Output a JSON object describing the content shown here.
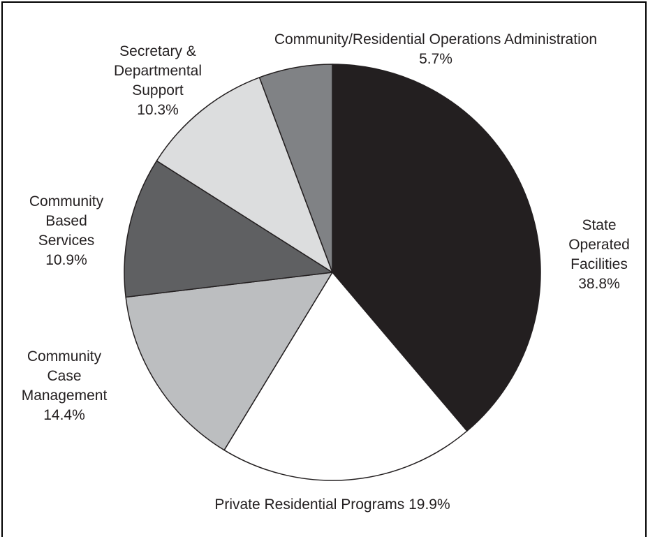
{
  "chart_data": {
    "type": "pie",
    "title": "",
    "start_angle": "12 o'clock",
    "direction": "clockwise",
    "slices": [
      {
        "label": "State Operated Facilities",
        "value": 38.8,
        "value_label": "38.8%",
        "color": "#231f20"
      },
      {
        "label": "Private Residential Programs",
        "value": 19.9,
        "value_label": "19.9%",
        "color": "#ffffff"
      },
      {
        "label": "Community Case Management",
        "value": 14.4,
        "value_label": "14.4%",
        "color": "#bcbec0"
      },
      {
        "label": "Community Based Services",
        "value": 10.9,
        "value_label": "10.9%",
        "color": "#5f6062"
      },
      {
        "label": "Secretary & Departmental Support",
        "value": 10.3,
        "value_label": "10.3%",
        "color": "#dcddde"
      },
      {
        "label": "Community/Residential Operations Administration",
        "value": 5.7,
        "value_label": "5.7%",
        "color": "#808285"
      }
    ],
    "labels": [
      {
        "lines": [
          "Community/Residential Operations Administration",
          "5.7%"
        ]
      },
      {
        "lines": [
          "Secretary &",
          "Departmental",
          "Support",
          "10.3%"
        ]
      },
      {
        "lines": [
          "Community",
          "Based",
          "Services",
          "10.9%"
        ]
      },
      {
        "lines": [
          "State",
          "Operated",
          "Facilities",
          "38.8%"
        ]
      },
      {
        "lines": [
          "Community",
          "Case",
          "Management",
          "14.4%"
        ]
      },
      {
        "lines": [
          "Private Residential Programs 19.9%"
        ]
      }
    ]
  }
}
